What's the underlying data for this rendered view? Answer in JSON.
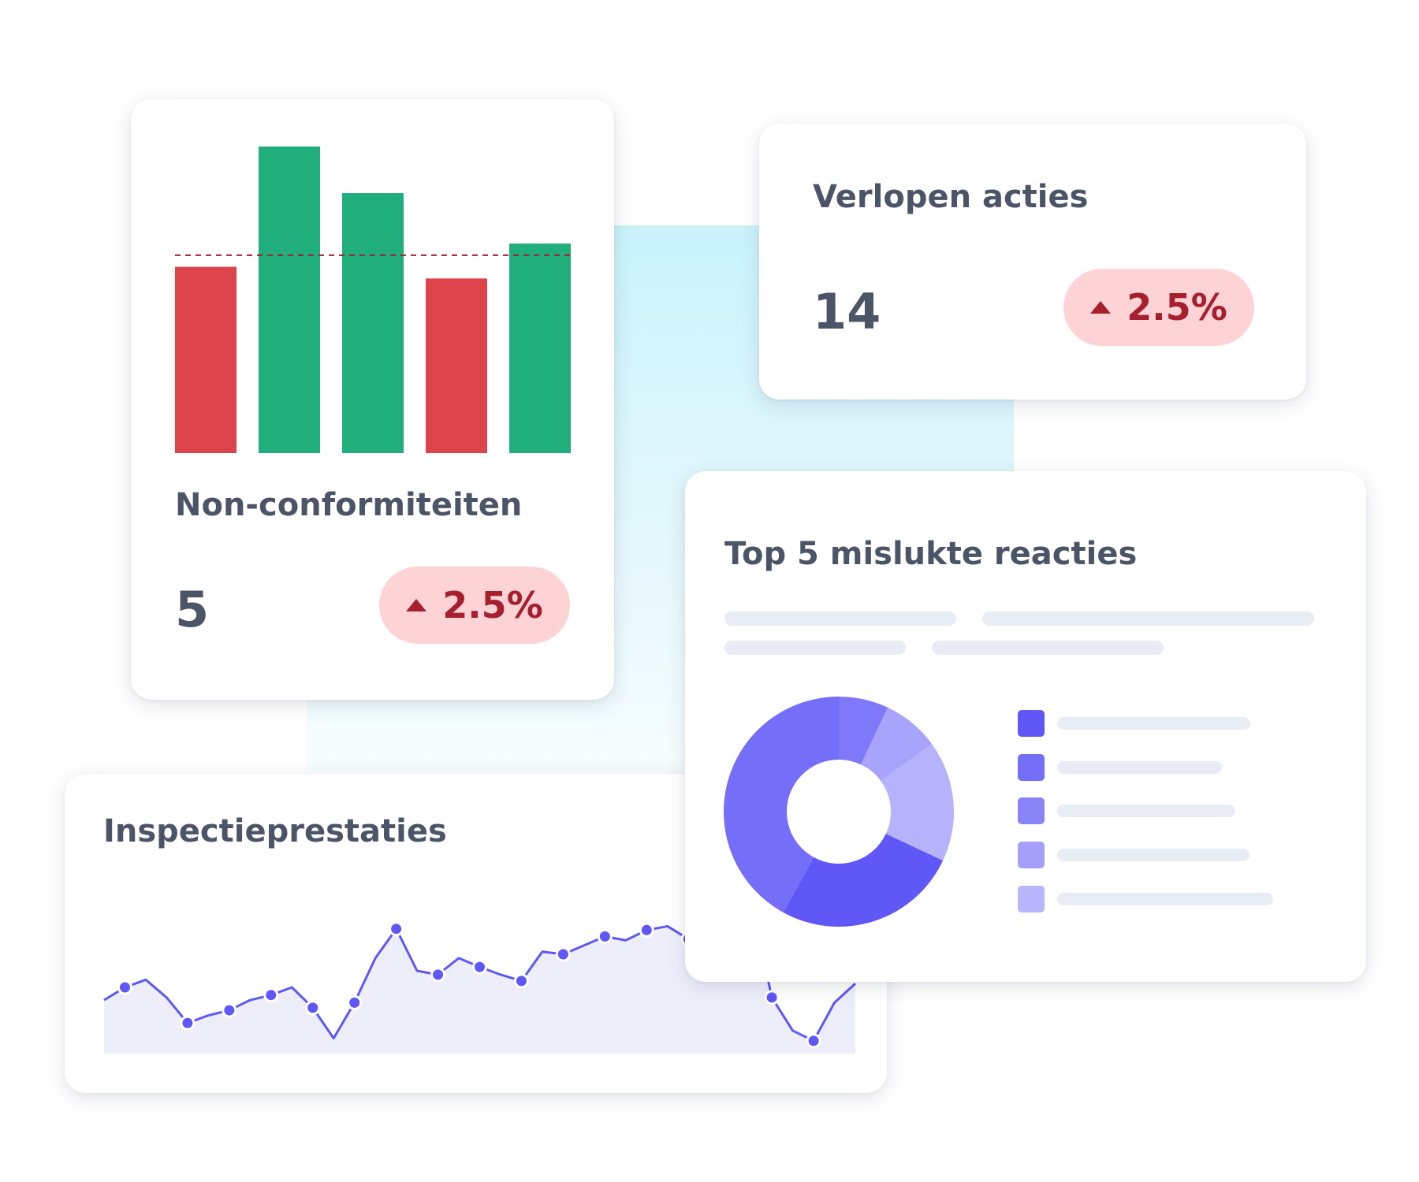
{
  "colors": {
    "green": "#20ae7c",
    "red": "#dc434b",
    "purple": "#5f57f6",
    "pill_bg": "#fdd3d6",
    "pill_text": "#a61f2e",
    "area_fill": "#eeeefb"
  },
  "nonconformities": {
    "title": "Non-conformiteiten",
    "value": "5",
    "change": "2.5%",
    "change_direction": "up",
    "chart_data": {
      "type": "bar",
      "values": [
        48,
        79,
        67,
        45,
        54
      ],
      "colors": [
        "#dc434b",
        "#20ae7c",
        "#20ae7c",
        "#dc434b",
        "#20ae7c"
      ],
      "threshold": 51,
      "ylim": [
        0,
        80
      ],
      "threshold_style": "dashed",
      "axes": "none"
    }
  },
  "expired_actions": {
    "title": "Verlopen acties",
    "value": "14",
    "change": "2.5%",
    "change_direction": "up"
  },
  "top5": {
    "title": "Top 5 mislukte reacties",
    "chart_data": {
      "type": "pie",
      "style": "donut",
      "values": [
        7,
        8,
        17,
        26,
        42
      ],
      "colors": [
        "#7f79f9",
        "#a9a4fb",
        "#b6b2fc",
        "#5f57f6",
        "#746ef8"
      ],
      "legend_colors": [
        "#5f57f6",
        "#746ef8",
        "#8a84f9",
        "#a59ffa",
        "#b9b5fc"
      ]
    }
  },
  "inspection": {
    "title": "Inspectieprestaties",
    "chart_data": {
      "type": "area",
      "values": [
        42,
        52,
        58,
        44,
        24,
        30,
        34,
        42,
        46,
        52,
        36,
        12,
        40,
        75,
        98,
        65,
        62,
        75,
        68,
        62,
        57,
        80,
        78,
        85,
        92,
        89,
        97,
        100,
        90,
        104,
        111,
        120,
        44,
        18,
        10,
        40,
        55
      ],
      "markers": [
        1,
        4,
        6,
        8,
        10,
        12,
        14,
        16,
        18,
        20,
        22,
        24,
        26,
        28,
        30,
        32,
        34
      ],
      "ylim": [
        0,
        130
      ],
      "axes": "none"
    }
  }
}
